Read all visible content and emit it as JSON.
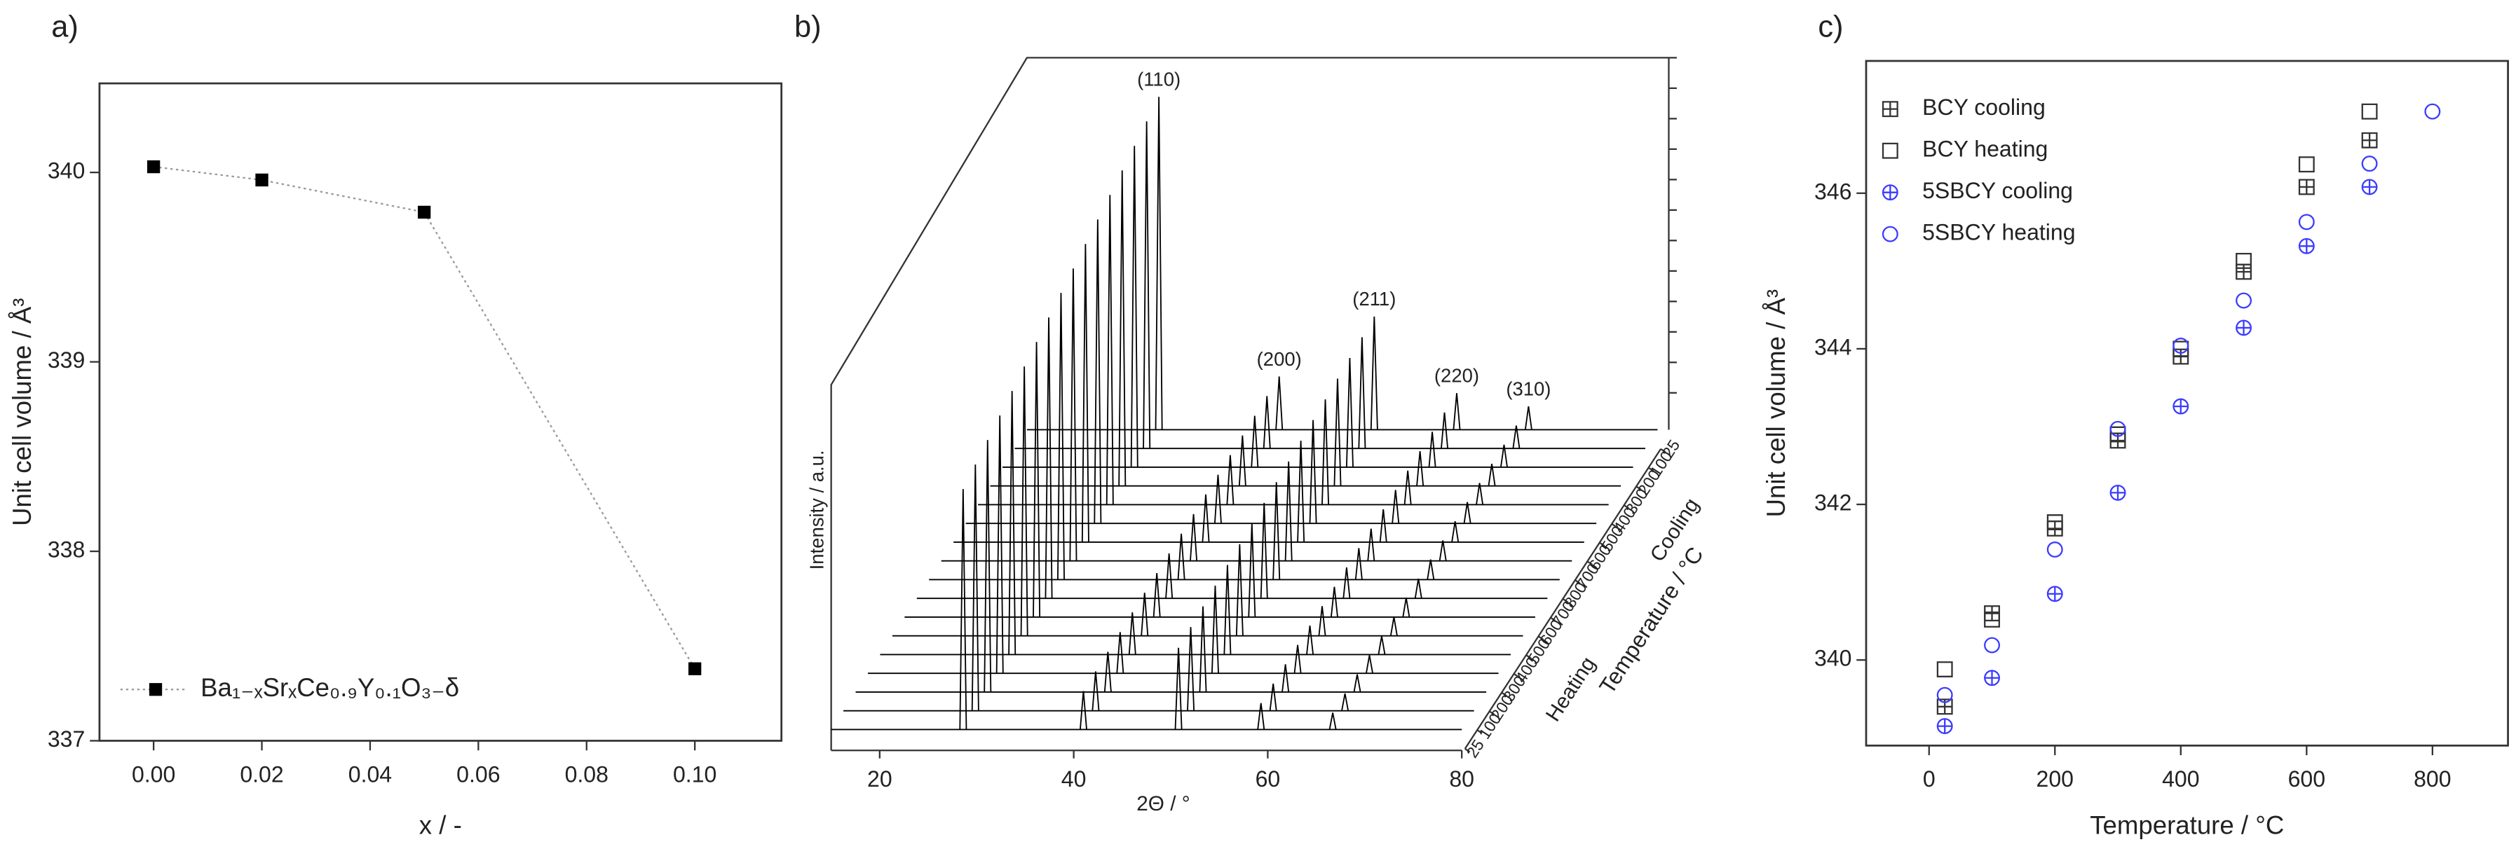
{
  "chart_data": [
    {
      "type": "line",
      "label": "a)",
      "x_label": "x / -",
      "y_label": "Unit cell volume / Å³",
      "x": [
        0,
        0.02,
        0.05,
        0.1
      ],
      "series": [
        {
          "name": "Ba₁₋ₓSrₓCe₀.₉Y₀.₁O₃₋δ",
          "color": "#000000",
          "line_color": "#9a9a9a",
          "values": [
            340.03,
            339.96,
            339.79,
            337.38
          ]
        }
      ],
      "xlim": [
        -0.01,
        0.116
      ],
      "xticks": [
        {
          "value": 0,
          "label": "0.00"
        },
        {
          "value": 0.02,
          "label": "0.02"
        },
        {
          "value": 0.04,
          "label": "0.04"
        },
        {
          "value": 0.06,
          "label": "0.06"
        },
        {
          "value": 0.08,
          "label": "0.08"
        },
        {
          "value": 0.1,
          "label": "0.10"
        }
      ],
      "ylim": [
        337,
        340.47
      ],
      "yticks": [
        337,
        338,
        339,
        340
      ],
      "marker": "square",
      "line_style": "dotted",
      "legend": "lower left"
    },
    {
      "type": "waterfall",
      "label": "b)",
      "x_label": "2Θ / °",
      "y_label": "Intensity / a.u.",
      "z_label": "Temperature / °C",
      "xlim": [
        15,
        80
      ],
      "xticks": [
        20,
        40,
        60,
        80
      ],
      "peaks": [
        {
          "label": "(110)",
          "two_theta": 28.6,
          "relative_intensity": 1.0
        },
        {
          "label": "(200)",
          "two_theta": 41.0,
          "relative_intensity": 0.16
        },
        {
          "label": "(211)",
          "two_theta": 50.8,
          "relative_intensity": 0.34
        },
        {
          "label": "(220)",
          "two_theta": 59.3,
          "relative_intensity": 0.11
        },
        {
          "label": "(310)",
          "two_theta": 66.7,
          "relative_intensity": 0.07
        }
      ],
      "programs": [
        {
          "name": "Heating",
          "temperatures": [
            25,
            100,
            200,
            300,
            400,
            500,
            600,
            700,
            800
          ]
        },
        {
          "name": "Cooling",
          "temperatures": [
            700,
            600,
            500,
            400,
            300,
            200,
            100,
            25
          ]
        }
      ],
      "color": "#000000"
    },
    {
      "type": "scatter",
      "label": "c)",
      "x_label": "Temperature / °C",
      "y_label": "Unit cell volume / Å³",
      "x": [
        25,
        100,
        200,
        300,
        400,
        500,
        600,
        700,
        800
      ],
      "series": [
        {
          "name": "BCY cooling",
          "color": "#333333",
          "marker": "square-plus",
          "values": [
            339.4,
            340.6,
            341.69,
            342.82,
            343.9,
            344.99,
            346.08,
            346.68,
            null
          ]
        },
        {
          "name": "BCY heating",
          "color": "#333333",
          "marker": "square",
          "values": [
            339.88,
            340.52,
            341.77,
            342.9,
            344.0,
            345.13,
            346.37,
            347.05,
            null
          ]
        },
        {
          "name": "5SBCY cooling",
          "color": "#3b3bff",
          "marker": "circle-plus",
          "values": [
            339.15,
            339.77,
            340.85,
            342.15,
            343.26,
            344.27,
            345.32,
            346.08,
            null
          ]
        },
        {
          "name": "5SBCY heating",
          "color": "#3b3bff",
          "marker": "circle",
          "values": [
            339.55,
            340.19,
            341.42,
            342.97,
            344.04,
            344.62,
            345.63,
            346.38,
            347.05
          ]
        }
      ],
      "xlim": [
        -100,
        920
      ],
      "xticks": [
        0,
        200,
        400,
        600,
        800
      ],
      "ylim": [
        338.9,
        347.7
      ],
      "yticks": [
        340,
        342,
        344,
        346
      ],
      "legend": "upper left"
    }
  ]
}
